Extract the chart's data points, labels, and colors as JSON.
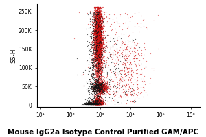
{
  "title": "Mouse IgG2a Isotype Control Purified GAM/APC",
  "ylabel": "SS-H",
  "yticks": [
    0,
    50000,
    100000,
    150000,
    200000,
    250000
  ],
  "ytick_labels": [
    "0",
    "50K",
    "100K",
    "150K",
    "200K",
    "250K"
  ],
  "xlabel_tick_vals": [
    10,
    100,
    1000,
    10000,
    100000,
    1000000
  ],
  "xlabel_ticks": [
    "10¹",
    "10²",
    "10³",
    "10⁴",
    "10⁵",
    "10⁶"
  ],
  "xlim": [
    8,
    2000000
  ],
  "ylim": [
    -5000,
    270000
  ],
  "background_color": "#ffffff",
  "title_fontsize": 7.5,
  "title_fontweight": "bold",
  "red_color": "#cc1111",
  "black_color": "#111111",
  "seed": 42
}
